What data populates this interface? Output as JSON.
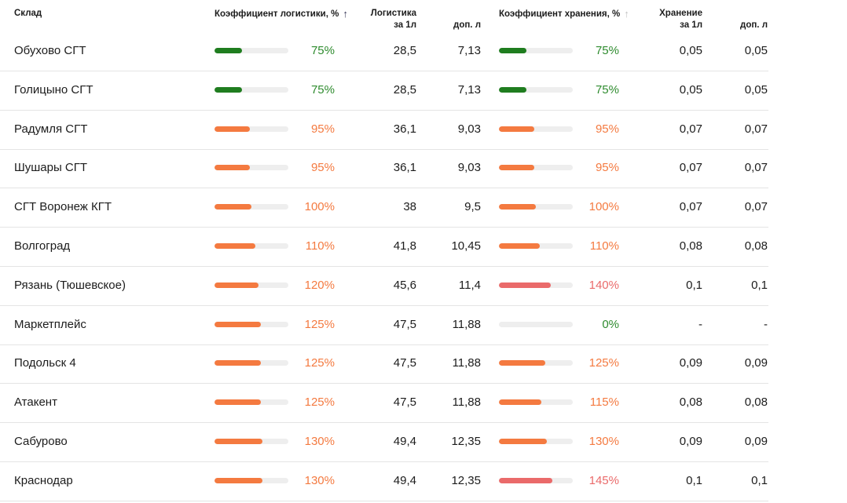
{
  "colors": {
    "green": "#1f7d1f",
    "orange": "#f47a40",
    "red": "#ea6a6a",
    "pct_green": "#2e8b2e",
    "pct_orange": "#f47a40",
    "pct_red": "#ea6a6a"
  },
  "headers": {
    "warehouse": "Склад",
    "logistics_coef": "Коэффициент логистики, %",
    "logistics_per_l_1": "Логистика",
    "logistics_per_l_2": "за 1л",
    "logistics_extra": "доп. л",
    "storage_coef": "Коэффициент хранения, %",
    "storage_per_l_1": "Хранение",
    "storage_per_l_2": "за 1л",
    "storage_extra": "доп. л",
    "logistics_sort_icon": "↑",
    "storage_sort_icon": "↑"
  },
  "rows": [
    {
      "name": "Обухово СГТ",
      "log_pct": "75%",
      "log_level": 0.375,
      "log_color": "green",
      "log_1l": "28,5",
      "log_extra": "7,13",
      "stor_pct": "75%",
      "stor_level": 0.375,
      "stor_color": "green",
      "stor_1l": "0,05",
      "stor_extra": "0,05"
    },
    {
      "name": "Голицыно СГТ",
      "log_pct": "75%",
      "log_level": 0.375,
      "log_color": "green",
      "log_1l": "28,5",
      "log_extra": "7,13",
      "stor_pct": "75%",
      "stor_level": 0.375,
      "stor_color": "green",
      "stor_1l": "0,05",
      "stor_extra": "0,05"
    },
    {
      "name": "Радумля СГТ",
      "log_pct": "95%",
      "log_level": 0.475,
      "log_color": "orange",
      "log_1l": "36,1",
      "log_extra": "9,03",
      "stor_pct": "95%",
      "stor_level": 0.475,
      "stor_color": "orange",
      "stor_1l": "0,07",
      "stor_extra": "0,07"
    },
    {
      "name": "Шушары СГТ",
      "log_pct": "95%",
      "log_level": 0.475,
      "log_color": "orange",
      "log_1l": "36,1",
      "log_extra": "9,03",
      "stor_pct": "95%",
      "stor_level": 0.475,
      "stor_color": "orange",
      "stor_1l": "0,07",
      "stor_extra": "0,07"
    },
    {
      "name": "СГТ Воронеж КГТ",
      "log_pct": "100%",
      "log_level": 0.5,
      "log_color": "orange",
      "log_1l": "38",
      "log_extra": "9,5",
      "stor_pct": "100%",
      "stor_level": 0.5,
      "stor_color": "orange",
      "stor_1l": "0,07",
      "stor_extra": "0,07"
    },
    {
      "name": "Волгоград",
      "log_pct": "110%",
      "log_level": 0.55,
      "log_color": "orange",
      "log_1l": "41,8",
      "log_extra": "10,45",
      "stor_pct": "110%",
      "stor_level": 0.55,
      "stor_color": "orange",
      "stor_1l": "0,08",
      "stor_extra": "0,08"
    },
    {
      "name": "Рязань (Тюшевское)",
      "log_pct": "120%",
      "log_level": 0.6,
      "log_color": "orange",
      "log_1l": "45,6",
      "log_extra": "11,4",
      "stor_pct": "140%",
      "stor_level": 0.7,
      "stor_color": "red",
      "stor_1l": "0,1",
      "stor_extra": "0,1"
    },
    {
      "name": "Маркетплейс",
      "log_pct": "125%",
      "log_level": 0.625,
      "log_color": "orange",
      "log_1l": "47,5",
      "log_extra": "11,88",
      "stor_pct": "0%",
      "stor_level": 0,
      "stor_color": "green",
      "stor_1l": "-",
      "stor_extra": "-"
    },
    {
      "name": "Подольск 4",
      "log_pct": "125%",
      "log_level": 0.625,
      "log_color": "orange",
      "log_1l": "47,5",
      "log_extra": "11,88",
      "stor_pct": "125%",
      "stor_level": 0.625,
      "stor_color": "orange",
      "stor_1l": "0,09",
      "stor_extra": "0,09"
    },
    {
      "name": "Атакент",
      "log_pct": "125%",
      "log_level": 0.625,
      "log_color": "orange",
      "log_1l": "47,5",
      "log_extra": "11,88",
      "stor_pct": "115%",
      "stor_level": 0.575,
      "stor_color": "orange",
      "stor_1l": "0,08",
      "stor_extra": "0,08"
    },
    {
      "name": "Сабурово",
      "log_pct": "130%",
      "log_level": 0.65,
      "log_color": "orange",
      "log_1l": "49,4",
      "log_extra": "12,35",
      "stor_pct": "130%",
      "stor_level": 0.65,
      "stor_color": "orange",
      "stor_1l": "0,09",
      "stor_extra": "0,09"
    },
    {
      "name": "Краснодар",
      "log_pct": "130%",
      "log_level": 0.65,
      "log_color": "orange",
      "log_1l": "49,4",
      "log_extra": "12,35",
      "stor_pct": "145%",
      "stor_level": 0.725,
      "stor_color": "red",
      "stor_1l": "0,1",
      "stor_extra": "0,1"
    }
  ]
}
